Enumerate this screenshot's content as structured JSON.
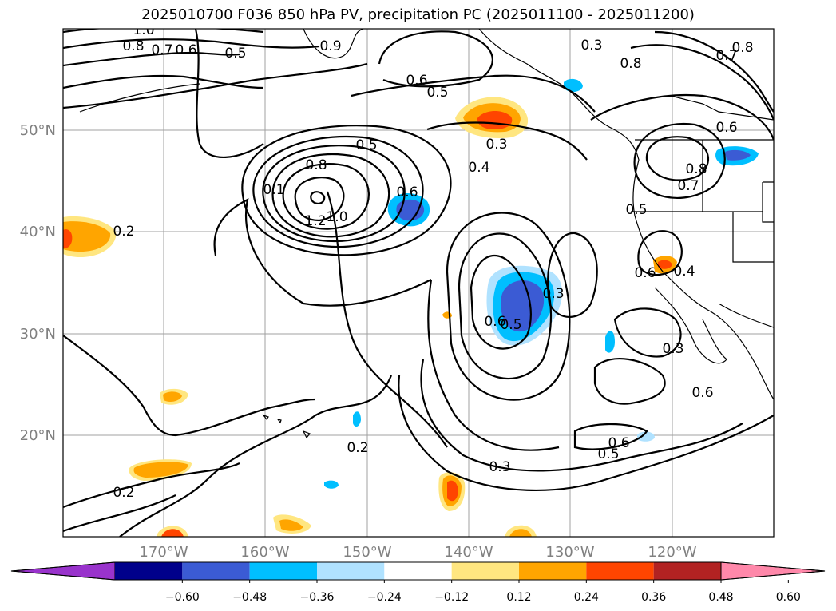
{
  "title": "2025010700 F036 850 hPa PV, precipitation PC (2025011100 - 2025011200)",
  "map": {
    "lat_ticks": [
      "50°N",
      "40°N",
      "30°N",
      "20°N"
    ],
    "lon_ticks": [
      "170°W",
      "160°W",
      "150°W",
      "140°W",
      "130°W",
      "120°W"
    ],
    "contour_labels": [
      "1.0",
      "0.8",
      "0.7",
      "0.6",
      "0.5",
      "0.9",
      "0.3",
      "0.8",
      "0.7",
      "0.8",
      "0.6",
      "0.5",
      "0.5",
      "0.8",
      "0.1",
      "1.2",
      "1.0",
      "0.6",
      "0.3",
      "0.4",
      "0.6",
      "0.8",
      "0.7",
      "0.5",
      "0.2",
      "0.6",
      "0.4",
      "0.6",
      "0.5",
      "0.3",
      "0.3",
      "0.6",
      "0.5",
      "0.6",
      "0.2",
      "0.3",
      "0.2"
    ]
  },
  "colorbar": {
    "ticks": [
      "−0.60",
      "−0.48",
      "−0.36",
      "−0.24",
      "−0.12",
      "0.12",
      "0.24",
      "0.36",
      "0.48",
      "0.60"
    ],
    "colors": [
      "#9933cc",
      "#00008b",
      "#3b5bd4",
      "#00bfff",
      "#b0e2ff",
      "#ffffff",
      "#ffe680",
      "#ffa500",
      "#ff4500",
      "#b22222",
      "#ff88aa"
    ]
  }
}
